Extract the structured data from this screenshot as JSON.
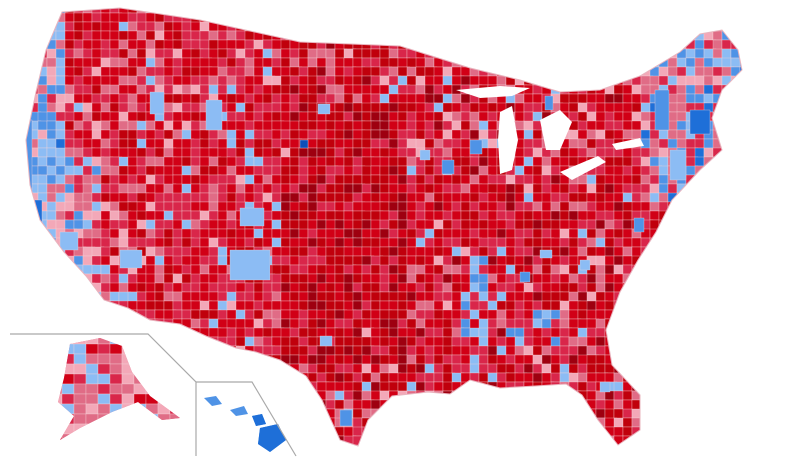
{
  "map": {
    "palette": {
      "r1": "#e06c86",
      "r2": "#d9264a",
      "r3": "#d10016",
      "r4": "#c0000c",
      "r5": "#9e0010",
      "r6": "#f3a8b8",
      "b1": "#8cbcf4",
      "b2": "#4f93e6",
      "b3": "#1e6fd8",
      "b4": "#0c4fb9",
      "border": "#f2d3d8",
      "inset_line": "#a9a9a9"
    },
    "regions": [
      {
        "name": "west-coast",
        "tone": "mixed"
      },
      {
        "name": "mountain-west",
        "tone": "red"
      },
      {
        "name": "great-plains",
        "tone": "deep-red"
      },
      {
        "name": "midwest",
        "tone": "red"
      },
      {
        "name": "south",
        "tone": "red"
      },
      {
        "name": "northeast",
        "tone": "mixed"
      },
      {
        "name": "alaska",
        "tone": "mixed"
      },
      {
        "name": "hawaii",
        "tone": "blue"
      }
    ]
  }
}
